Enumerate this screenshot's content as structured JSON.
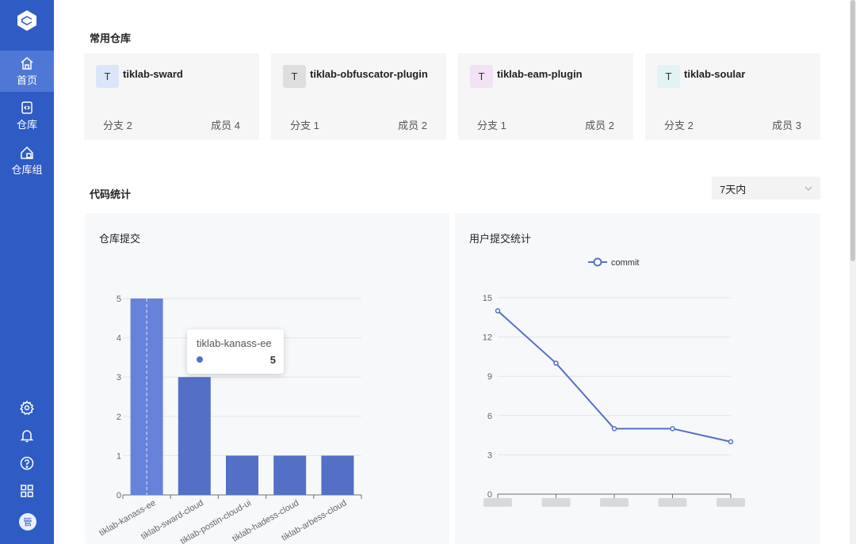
{
  "sidebar": {
    "nav": [
      {
        "label": "首页",
        "icon": "home-icon",
        "active": true
      },
      {
        "label": "仓库",
        "icon": "repository-icon",
        "active": false
      },
      {
        "label": "仓库组",
        "icon": "repository-group-icon",
        "active": false
      }
    ],
    "bottom_icons": [
      "settings-icon",
      "bell-icon",
      "help-icon",
      "apps-grid-icon"
    ],
    "avatar_text": "管"
  },
  "common_repos": {
    "title": "常用仓库",
    "items": [
      {
        "initial": "T",
        "name": "tiklab-sward",
        "branch": "分支 2",
        "members": "成员 4",
        "color": "#dbe6fb"
      },
      {
        "initial": "T",
        "name": "tiklab-obfuscator-plugin",
        "branch": "分支 1",
        "members": "成员 2",
        "color": "#dedede"
      },
      {
        "initial": "T",
        "name": "tiklab-eam-plugin",
        "branch": "分支 1",
        "members": "成员 2",
        "color": "#f3e2f6"
      },
      {
        "initial": "T",
        "name": "tiklab-soular",
        "branch": "分支 2",
        "members": "成员 3",
        "color": "#e1f3f3"
      }
    ]
  },
  "code_stats": {
    "title": "代码统计",
    "range_select": "7天内"
  },
  "repo_commits": {
    "title": "仓库提交",
    "tooltip": {
      "name": "tiklab-kanass-ee",
      "value": "5"
    }
  },
  "user_commits": {
    "title": "用户提交统计"
  },
  "chart_data": [
    {
      "type": "bar",
      "title": "仓库提交",
      "categories": [
        "tiklab-kanass-ee",
        "tiklab-sward-cloud",
        "tiklab-postin-cloud-ui",
        "tiklab-hadess-cloud",
        "tiklab-arbess-cloud"
      ],
      "values": [
        5,
        3,
        1,
        1,
        1
      ],
      "ylim": [
        0,
        5
      ],
      "yticks": [
        0,
        1,
        2,
        3,
        4,
        5
      ],
      "color": "#5470c6",
      "highlight_color": "#6682da",
      "grid": true
    },
    {
      "type": "line",
      "title": "用户提交统计",
      "series": [
        {
          "name": "commit",
          "values": [
            14,
            10,
            5,
            5,
            4
          ]
        }
      ],
      "ylim": [
        0,
        15
      ],
      "yticks": [
        0,
        3,
        6,
        9,
        12,
        15
      ],
      "legend": "top-center",
      "color": "#5470c6",
      "grid": true
    }
  ]
}
